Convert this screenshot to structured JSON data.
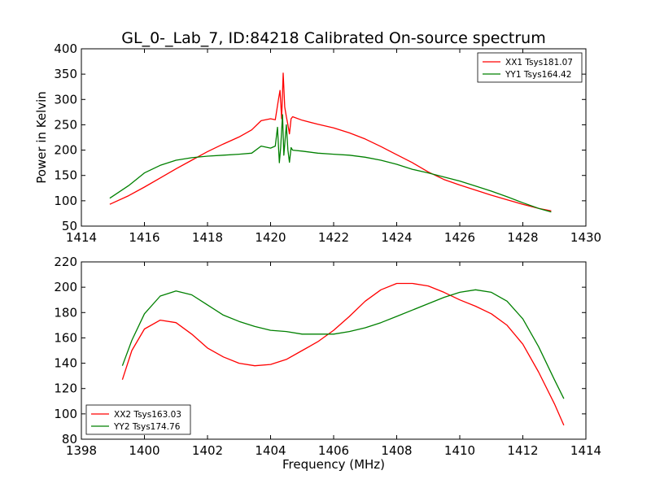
{
  "figure": {
    "title": "GL_0-_Lab_7, ID:84218 Calibrated On-source spectrum"
  },
  "chart_data": [
    {
      "type": "line",
      "title": "GL_0-_Lab_7, ID:84218 Calibrated On-source spectrum",
      "xlabel": "",
      "ylabel": "Power in Kelvin",
      "xlim": [
        1414,
        1430
      ],
      "ylim": [
        50,
        400
      ],
      "xticks": [
        "1414",
        "1416",
        "1418",
        "1420",
        "1422",
        "1424",
        "1426",
        "1428",
        "1430"
      ],
      "yticks": [
        "50",
        "100",
        "150",
        "200",
        "250",
        "300",
        "350",
        "400"
      ],
      "grid": false,
      "legend_position": "top-right",
      "series": [
        {
          "name": "XX1 Tsys181.07",
          "color": "#ff0000",
          "x": [
            1414.9,
            1415.5,
            1416,
            1416.5,
            1417,
            1417.5,
            1418,
            1418.5,
            1419,
            1419.4,
            1419.7,
            1420,
            1420.15,
            1420.25,
            1420.3,
            1420.35,
            1420.4,
            1420.45,
            1420.5,
            1420.55,
            1420.6,
            1420.65,
            1420.7,
            1421,
            1421.5,
            1422,
            1422.5,
            1423,
            1423.5,
            1424,
            1424.5,
            1425,
            1425.5,
            1426,
            1426.5,
            1427,
            1427.5,
            1428,
            1428.5,
            1428.9
          ],
          "y": [
            93,
            110,
            127,
            145,
            163,
            180,
            197,
            212,
            226,
            240,
            258,
            262,
            260,
            300,
            318,
            262,
            352,
            285,
            266,
            250,
            232,
            262,
            266,
            259,
            251,
            244,
            234,
            222,
            207,
            191,
            175,
            157,
            142,
            131,
            121,
            111,
            102,
            93,
            85,
            80
          ]
        },
        {
          "name": "YY1 Tsys164.42",
          "color": "#008000",
          "x": [
            1414.9,
            1415.5,
            1416,
            1416.5,
            1417,
            1417.5,
            1418,
            1418.5,
            1419,
            1419.4,
            1419.7,
            1420,
            1420.15,
            1420.22,
            1420.28,
            1420.32,
            1420.38,
            1420.42,
            1420.5,
            1420.55,
            1420.6,
            1420.65,
            1420.7,
            1421,
            1421.5,
            1422,
            1422.5,
            1423,
            1423.5,
            1424,
            1424.5,
            1425,
            1425.5,
            1426,
            1426.5,
            1427,
            1427.5,
            1428,
            1428.5,
            1428.9
          ],
          "y": [
            105,
            130,
            155,
            170,
            180,
            185,
            188,
            190,
            192,
            194,
            208,
            204,
            208,
            245,
            175,
            205,
            270,
            190,
            250,
            200,
            176,
            205,
            200,
            198,
            194,
            192,
            190,
            186,
            180,
            172,
            162,
            155,
            147,
            139,
            129,
            119,
            108,
            96,
            85,
            78
          ]
        }
      ]
    },
    {
      "type": "line",
      "title": "",
      "xlabel": "Frequency (MHz)",
      "ylabel": "",
      "xlim": [
        1398,
        1414
      ],
      "ylim": [
        80,
        220
      ],
      "xticks": [
        "1398",
        "1400",
        "1402",
        "1404",
        "1406",
        "1408",
        "1410",
        "1412",
        "1414"
      ],
      "yticks": [
        "80",
        "100",
        "120",
        "140",
        "160",
        "180",
        "200",
        "220"
      ],
      "grid": false,
      "legend_position": "bottom-left",
      "series": [
        {
          "name": "XX2 Tsys163.03",
          "color": "#ff0000",
          "x": [
            1399.3,
            1399.6,
            1400,
            1400.5,
            1401,
            1401.5,
            1402,
            1402.5,
            1403,
            1403.5,
            1404,
            1404.5,
            1405,
            1405.5,
            1406,
            1406.5,
            1407,
            1407.5,
            1408,
            1408.5,
            1409,
            1409.5,
            1410,
            1410.5,
            1411,
            1411.5,
            1412,
            1412.5,
            1413,
            1413.3
          ],
          "y": [
            127,
            150,
            167,
            174,
            172,
            163,
            152,
            145,
            140,
            138,
            139,
            143,
            150,
            157,
            166,
            177,
            189,
            198,
            203,
            203,
            201,
            196,
            190,
            185,
            179,
            170,
            155,
            133,
            108,
            91
          ]
        },
        {
          "name": "YY2 Tsys174.76",
          "color": "#008000",
          "x": [
            1399.3,
            1399.6,
            1400,
            1400.5,
            1401,
            1401.5,
            1402,
            1402.5,
            1403,
            1403.5,
            1404,
            1404.5,
            1405,
            1405.5,
            1406,
            1406.5,
            1407,
            1407.5,
            1408,
            1408.5,
            1409,
            1409.5,
            1410,
            1410.5,
            1411,
            1411.5,
            1412,
            1412.5,
            1413,
            1413.3
          ],
          "y": [
            138,
            158,
            179,
            193,
            197,
            194,
            186,
            178,
            173,
            169,
            166,
            165,
            163,
            163,
            163,
            165,
            168,
            172,
            177,
            182,
            187,
            192,
            196,
            198,
            196,
            189,
            175,
            153,
            127,
            112
          ]
        }
      ]
    }
  ]
}
